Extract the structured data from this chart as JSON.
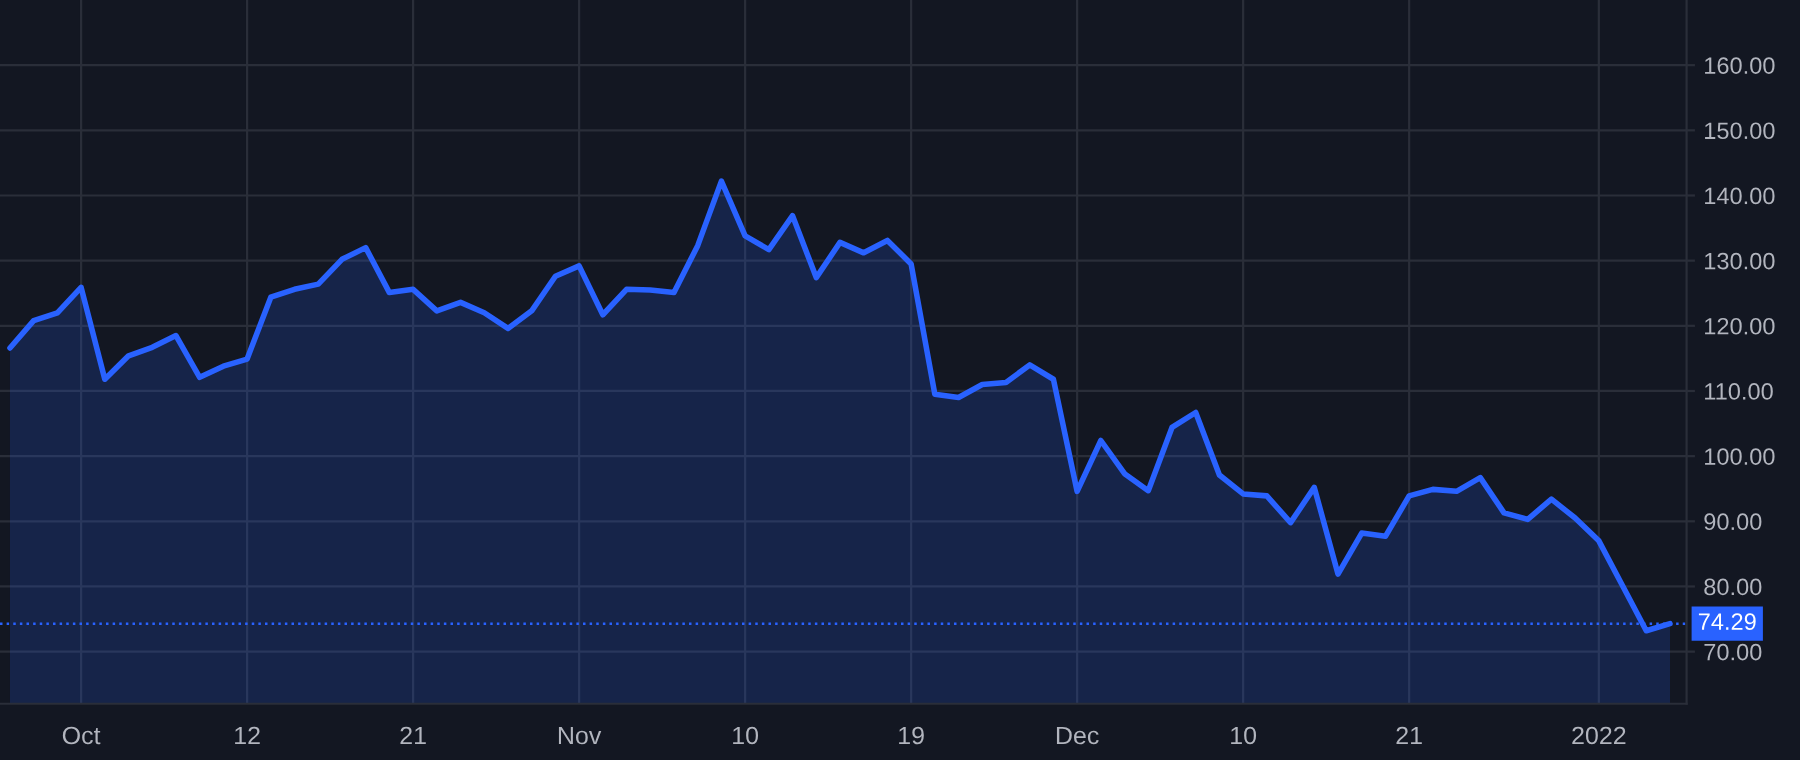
{
  "chart_data": {
    "type": "area",
    "categories": [
      null,
      null,
      null,
      "Oct",
      null,
      null,
      null,
      null,
      null,
      null,
      "12",
      null,
      null,
      null,
      null,
      null,
      null,
      "21",
      null,
      null,
      null,
      null,
      null,
      null,
      "Nov",
      null,
      null,
      null,
      null,
      null,
      null,
      "10",
      null,
      null,
      null,
      null,
      null,
      null,
      "19",
      null,
      null,
      null,
      null,
      null,
      null,
      "Dec",
      null,
      null,
      null,
      null,
      null,
      null,
      "10",
      null,
      null,
      null,
      null,
      null,
      null,
      "21",
      null,
      null,
      null,
      null,
      null,
      null,
      null,
      "2022",
      null,
      null,
      null
    ],
    "series": [
      {
        "color": "#2962ff",
        "values": [
          116.6,
          120.8,
          122.0,
          125.9,
          111.8,
          115.4,
          116.7,
          118.5,
          112.1,
          113.8,
          114.9,
          124.4,
          125.6,
          126.4,
          130.2,
          132.0,
          125.1,
          125.6,
          122.3,
          123.6,
          122.0,
          119.6,
          122.3,
          127.6,
          129.2,
          121.7,
          125.6,
          125.5,
          125.1,
          132.3,
          142.2,
          133.8,
          131.7,
          136.9,
          127.4,
          132.8,
          131.2,
          133.1,
          129.5,
          109.5,
          109.0,
          111.0,
          111.3,
          114.0,
          111.8,
          94.6,
          102.4,
          97.3,
          94.7,
          104.4,
          106.7,
          97.1,
          94.2,
          93.9,
          89.8,
          95.2,
          81.9,
          88.2,
          87.7,
          93.9,
          94.9,
          94.6,
          96.7,
          91.3,
          90.3,
          93.4,
          90.5,
          87.0,
          80.1,
          73.2,
          74.29
        ]
      }
    ],
    "ylim": [
      62,
      170
    ],
    "yticks": [
      {
        "value": 70,
        "label": "70.00"
      },
      {
        "value": 80,
        "label": "80.00"
      },
      {
        "value": 90,
        "label": "90.00"
      },
      {
        "value": 100,
        "label": "100.00"
      },
      {
        "value": 110,
        "label": "110.00"
      },
      {
        "value": 120,
        "label": "120.00"
      },
      {
        "value": 130,
        "label": "130.00"
      },
      {
        "value": 140,
        "label": "140.00"
      },
      {
        "value": 150,
        "label": "150.00"
      },
      {
        "value": 160,
        "label": "160.00"
      }
    ],
    "ref_lines": [
      {
        "axis": "y",
        "value": 74.29,
        "label": "74.29",
        "color": "#2962ff",
        "line_style": "dotted"
      }
    ],
    "grid": true
  }
}
